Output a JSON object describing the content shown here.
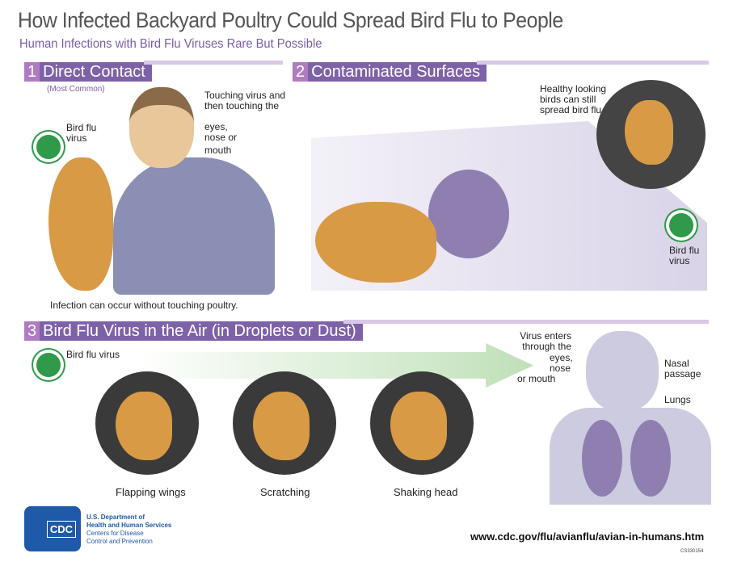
{
  "title": "How Infected Backyard Poultry Could Spread Bird Flu to People",
  "subtitle": "Human Infections with Bird Flu Viruses Rare But Possible",
  "section1": {
    "number": "1",
    "label": "Direct Contact",
    "note": "(Most Common)",
    "virus_label": "Bird flu virus",
    "touch_label": "Touching virus and then touching the",
    "targets": [
      "eyes,",
      "nose or",
      "mouth"
    ],
    "caption": "Infection can occur without touching poultry."
  },
  "section2": {
    "number": "2",
    "label": "Contaminated Surfaces",
    "inset_label": "Healthy looking birds can still spread bird flu",
    "virus_label": "Bird flu virus"
  },
  "section3": {
    "number": "3",
    "label": "Bird Flu Virus in the Air (in Droplets or Dust)",
    "virus_label": "Bird flu virus",
    "panels": [
      "Flapping wings",
      "Scratching",
      "Shaking head"
    ],
    "enter_label": "Virus enters through the",
    "targets": [
      "eyes,",
      "nose",
      "or mouth"
    ],
    "nasal_label": "Nasal passage",
    "lungs_label": "Lungs"
  },
  "footer": {
    "logo_text": "CDC",
    "org_line1": "U.S. Department of",
    "org_line2": "Health and Human Services",
    "org_line3": "Centers for Disease",
    "org_line4": "Control and Prevention",
    "url": "www.cdc.gov/flu/avianflu/avian-in-humans.htm",
    "code": "CS330154"
  },
  "colors": {
    "title": "#555555",
    "accent_purple": "#7e62a8",
    "virus_green": "#2e9a4a",
    "hen": "#d89a45"
  }
}
